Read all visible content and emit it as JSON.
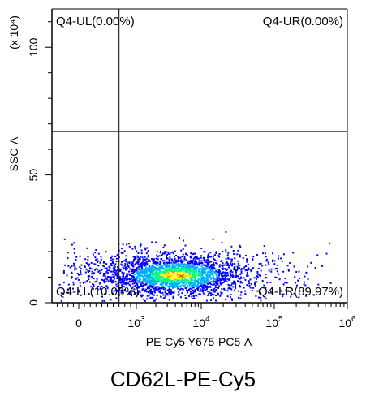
{
  "chart_data": {
    "type": "scatter",
    "title": "CD62L-PE-Cy5",
    "xlabel": "PE-Cy5 Y675-PC5-A",
    "ylabel": "SSC-A",
    "y_multiplier_label": "(x 10⁴)",
    "x_scale": "biexponential",
    "x_ticks": [
      {
        "value": 0,
        "label": "0"
      },
      {
        "value": 1000,
        "label": "10³"
      },
      {
        "value": 10000,
        "label": "10⁴"
      },
      {
        "value": 100000,
        "label": "10⁵"
      },
      {
        "value": 1000000,
        "label": "10⁶"
      }
    ],
    "y_ticks": [
      {
        "value": 0,
        "label": "0"
      },
      {
        "value": 50,
        "label": "50"
      },
      {
        "value": 100,
        "label": "100"
      }
    ],
    "ylim": [
      0,
      115
    ],
    "gates": {
      "x_threshold": 700,
      "y_threshold": 67
    },
    "quadrants": [
      {
        "name": "Q4-UL",
        "label": "Q4-UL(0.00%)",
        "percent": 0.0,
        "position": "top-left"
      },
      {
        "name": "Q4-UR",
        "label": "Q4-UR(0.00%)",
        "percent": 0.0,
        "position": "top-right"
      },
      {
        "name": "Q4-LL",
        "label": "Q4-LL(10.03%)",
        "percent": 10.03,
        "position": "bottom-left"
      },
      {
        "name": "Q4-LR",
        "label": "Q4-LR(89.97%)",
        "percent": 89.97,
        "position": "bottom-right"
      }
    ],
    "density_colormap": [
      "#0000ff",
      "#00b0ff",
      "#00ff80",
      "#ffff00",
      "#ff8000",
      "#ff0000"
    ],
    "population": {
      "center_x": 4000,
      "center_y": 11,
      "spread_y": 4
    }
  }
}
